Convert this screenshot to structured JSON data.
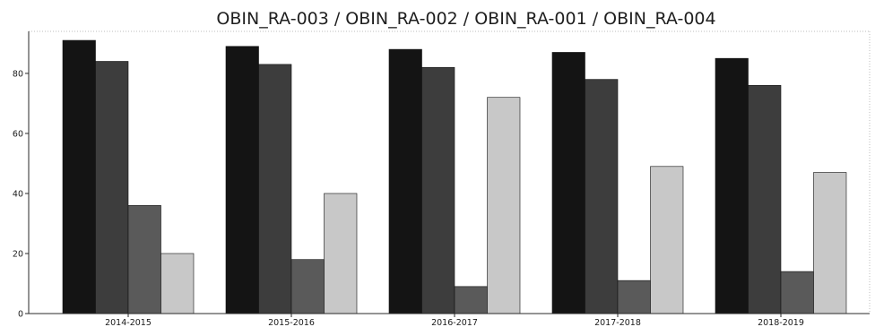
{
  "chart_data": {
    "type": "bar",
    "title": "OBIN_RA-003 / OBIN_RA-002 / OBIN_RA-001 / OBIN_RA-004",
    "xlabel": "",
    "ylabel": "",
    "categories": [
      "2014-2015",
      "2015-2016",
      "2016-2017",
      "2017-2018",
      "2018-2019"
    ],
    "series": [
      {
        "values": [
          91,
          89,
          88,
          87,
          85
        ],
        "color": "#141414"
      },
      {
        "values": [
          84,
          83,
          82,
          78,
          76
        ],
        "color": "#3d3d3d"
      },
      {
        "values": [
          36,
          18,
          9,
          11,
          14
        ],
        "color": "#5a5a5a"
      },
      {
        "values": [
          20,
          40,
          72,
          49,
          47
        ],
        "color": "#c8c8c8"
      }
    ],
    "yticks": [
      0,
      20,
      40,
      60,
      80
    ],
    "ylim": [
      0,
      94
    ],
    "grid": false,
    "legend": "none"
  }
}
